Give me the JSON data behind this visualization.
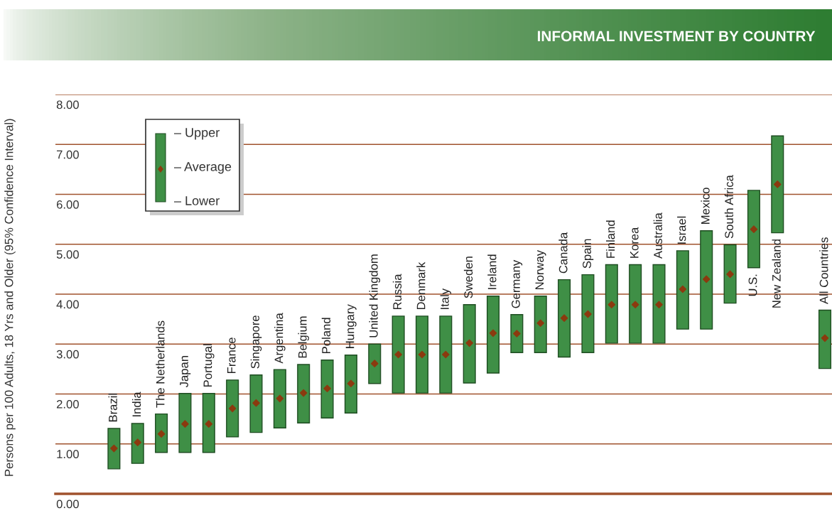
{
  "chart_data": {
    "type": "bar",
    "title": "INFORMAL INVESTMENT BY COUNTRY",
    "ylabel": "Persons per 100 Adults, 18 Yrs and Older (95% Confidence Interval)",
    "categories": [
      "Brazil",
      "India",
      "The Netherlands",
      "Japan",
      "Portugal",
      "France",
      "Singapore",
      "Argentina",
      "Belgium",
      "Poland",
      "Hungary",
      "United Kingdom",
      "Russia",
      "Denmark",
      "Italy",
      "Sweden",
      "Ireland",
      "Germany",
      "Norway",
      "Canada",
      "Spain",
      "Finland",
      "Korea",
      "Australia",
      "Israel",
      "Mexico",
      "South Africa",
      "U.S.",
      "New Zealand",
      null,
      "All Countries"
    ],
    "series": [
      {
        "color": "#3f8f46",
        "base": [
          0.5,
          0.61,
          0.83,
          0.83,
          0.83,
          1.14,
          1.23,
          1.32,
          1.42,
          1.52,
          1.62,
          2.21,
          2.02,
          2.02,
          2.02,
          2.22,
          2.42,
          2.83,
          2.83,
          2.74,
          2.83,
          3.02,
          3.02,
          3.02,
          3.3,
          3.3,
          3.82,
          4.53,
          5.23,
          null,
          2.51
        ],
        "values": [
          0.81,
          0.8,
          0.77,
          1.18,
          1.18,
          1.14,
          1.15,
          1.17,
          1.17,
          1.16,
          1.16,
          0.79,
          1.54,
          1.54,
          1.54,
          1.57,
          1.54,
          0.76,
          1.13,
          1.55,
          1.56,
          1.57,
          1.57,
          1.57,
          1.57,
          1.97,
          1.17,
          1.55,
          1.94,
          null,
          1.17
        ]
      },
      {
        "type": "scatter",
        "color": "#8b3a0f",
        "marker": "diamond",
        "values": [
          0.91,
          1.03,
          1.2,
          1.4,
          1.4,
          1.71,
          1.82,
          1.91,
          2.02,
          2.11,
          2.21,
          2.61,
          2.79,
          2.79,
          2.79,
          3.02,
          3.22,
          3.21,
          3.42,
          3.52,
          3.6,
          3.79,
          3.79,
          3.79,
          4.1,
          4.3,
          4.4,
          5.3,
          6.2,
          null,
          3.12
        ]
      }
    ],
    "ylim": [
      0,
      8
    ],
    "yticks": [
      {
        "value": 0,
        "label": "0.00"
      },
      {
        "value": 1,
        "label": "1.00"
      },
      {
        "value": 2,
        "label": "2.00"
      },
      {
        "value": 3,
        "label": "3.00"
      },
      {
        "value": 4,
        "label": "4.00"
      },
      {
        "value": 5,
        "label": "5.00"
      },
      {
        "value": 6,
        "label": "6.00"
      },
      {
        "value": 7,
        "label": "7.00"
      },
      {
        "value": 8,
        "label": "8.00"
      }
    ],
    "grid": "y",
    "annotations": [
      "– Upper",
      "– Average",
      "– Lower"
    ]
  }
}
